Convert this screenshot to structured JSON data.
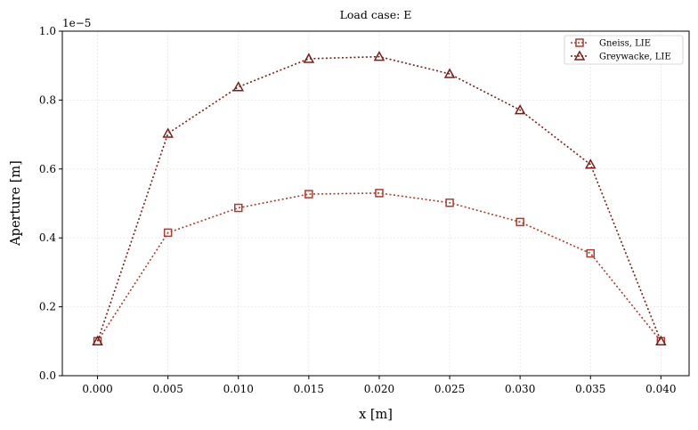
{
  "chart_data": {
    "type": "line",
    "title": "Load case: E",
    "xlabel": "x [m]",
    "ylabel": "Aperture [m]",
    "y_offset_text": "1e−5",
    "xlim": [
      -0.0025,
      0.042
    ],
    "ylim": [
      0.0,
      1.0
    ],
    "x_ticks": [
      "0.000",
      "0.005",
      "0.010",
      "0.015",
      "0.020",
      "0.025",
      "0.030",
      "0.035",
      "0.040"
    ],
    "y_ticks": [
      "0.0",
      "0.2",
      "0.4",
      "0.6",
      "0.8",
      "1.0"
    ],
    "grid": true,
    "legend_position": "top-right",
    "x": [
      0.0,
      0.005,
      0.01,
      0.015,
      0.02,
      0.025,
      0.03,
      0.035,
      0.04
    ],
    "series": [
      {
        "name": "Gneiss, LIE",
        "marker": "square",
        "color": "#b03a2e",
        "values": [
          0.1,
          0.415,
          0.487,
          0.527,
          0.53,
          0.502,
          0.446,
          0.355,
          0.1
        ]
      },
      {
        "name": "Greywacke, LIE",
        "marker": "triangle",
        "color": "#7b1e16",
        "values": [
          0.1,
          0.703,
          0.838,
          0.92,
          0.926,
          0.876,
          0.771,
          0.613,
          0.1
        ]
      }
    ]
  }
}
